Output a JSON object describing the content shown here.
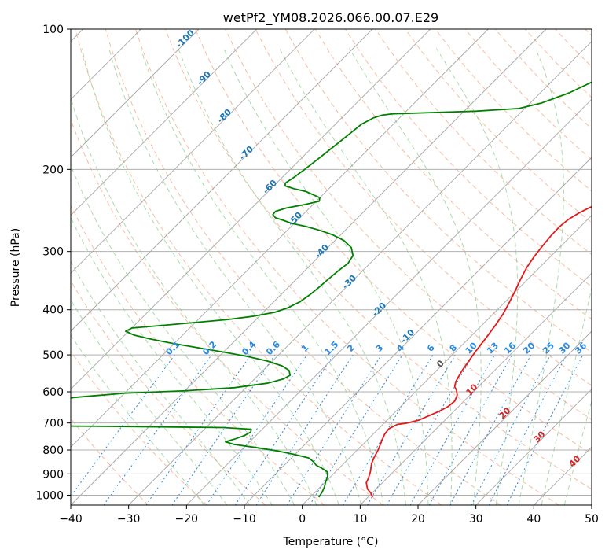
{
  "chart_data": {
    "type": "line",
    "title": "wetPf2_YM08.2026.066.00.07.E29",
    "xlabel": "Temperature (°C)",
    "ylabel": "Pressure (hPa)",
    "xlim": [
      -40,
      50
    ],
    "ylim": [
      1050,
      100
    ],
    "y_scale": "log",
    "grid": true,
    "x_ticks": [
      -40,
      -30,
      -20,
      -10,
      0,
      10,
      20,
      30,
      40,
      50
    ],
    "y_ticks": [
      100,
      200,
      300,
      400,
      500,
      600,
      700,
      800,
      900,
      1000
    ],
    "skew": true,
    "series": [
      {
        "color": "#e41a1c",
        "points": [
          [
            10.8,
            1010
          ],
          [
            9.8,
            990
          ],
          [
            8.5,
            970
          ],
          [
            7.2,
            940
          ],
          [
            6.8,
            920
          ],
          [
            6.0,
            890
          ],
          [
            4.8,
            855
          ],
          [
            4.2,
            830
          ],
          [
            3.6,
            800
          ],
          [
            2.8,
            770
          ],
          [
            2.0,
            740
          ],
          [
            1.8,
            720
          ],
          [
            2.5,
            705
          ],
          [
            4.0,
            700
          ],
          [
            5.5,
            690
          ],
          [
            6.5,
            675
          ],
          [
            7.5,
            660
          ],
          [
            8.2,
            645
          ],
          [
            8.4,
            628
          ],
          [
            7.8,
            610
          ],
          [
            6.8,
            595
          ],
          [
            5.9,
            585
          ],
          [
            5.2,
            570
          ],
          [
            4.8,
            555
          ],
          [
            4.4,
            540
          ],
          [
            3.9,
            515
          ],
          [
            3.4,
            490
          ],
          [
            2.9,
            460
          ],
          [
            2.3,
            430
          ],
          [
            1.7,
            408
          ],
          [
            0.9,
            388
          ],
          [
            -0.1,
            366
          ],
          [
            -1.2,
            345
          ],
          [
            -2.2,
            325
          ],
          [
            -2.8,
            308
          ],
          [
            -3.2,
            292
          ],
          [
            -3.5,
            278
          ],
          [
            -3.6,
            266
          ],
          [
            -3.3,
            256
          ],
          [
            -2.6,
            248
          ],
          [
            -1.6,
            241
          ],
          [
            -0.2,
            234
          ],
          [
            1.2,
            227
          ],
          [
            2.6,
            220
          ],
          [
            4.3,
            213
          ],
          [
            5.9,
            205
          ],
          [
            7.4,
            197
          ],
          [
            9.0,
            189
          ],
          [
            10.6,
            181
          ],
          [
            12.0,
            173
          ],
          [
            13.3,
            165
          ],
          [
            14.5,
            157
          ],
          [
            15.5,
            150
          ],
          [
            16.5,
            143
          ],
          [
            17.4,
            136
          ],
          [
            18.4,
            129
          ],
          [
            19.2,
            122
          ],
          [
            20.1,
            116
          ],
          [
            21.1,
            110
          ],
          [
            22.3,
            104
          ],
          [
            23.3,
            100
          ]
        ]
      },
      {
        "color": "#008000",
        "points": [
          [
            1.5,
            1010
          ],
          [
            1.2,
            985
          ],
          [
            0.7,
            960
          ],
          [
            0.0,
            935
          ],
          [
            -0.6,
            910
          ],
          [
            -1.5,
            890
          ],
          [
            -3.0,
            875
          ],
          [
            -4.5,
            862
          ],
          [
            -5.5,
            848
          ],
          [
            -7.0,
            832
          ],
          [
            -10.0,
            818
          ],
          [
            -13.5,
            804
          ],
          [
            -18.0,
            790
          ],
          [
            -22.3,
            778
          ],
          [
            -24.2,
            768
          ],
          [
            -23.0,
            757
          ],
          [
            -22.0,
            745
          ],
          [
            -21.5,
            732
          ],
          [
            -21.9,
            722
          ],
          [
            -27.0,
            716
          ],
          [
            -45.0,
            712
          ],
          [
            -68.0,
            709
          ],
          [
            -75.0,
            707
          ],
          [
            -76.0,
            690
          ],
          [
            -71.0,
            670
          ],
          [
            -67.0,
            650
          ],
          [
            -63.0,
            632
          ],
          [
            -58.0,
            617
          ],
          [
            -50.0,
            604
          ],
          [
            -40.0,
            597
          ],
          [
            -32.0,
            588
          ],
          [
            -27.0,
            575
          ],
          [
            -25.0,
            563
          ],
          [
            -24.5,
            553
          ],
          [
            -25.5,
            540
          ],
          [
            -27.5,
            528
          ],
          [
            -31.0,
            515
          ],
          [
            -35.5,
            503
          ],
          [
            -40.5,
            492
          ],
          [
            -45.5,
            482
          ],
          [
            -50.5,
            472
          ],
          [
            -55.0,
            462
          ],
          [
            -58.5,
            453
          ],
          [
            -60.5,
            445
          ],
          [
            -60.0,
            438
          ],
          [
            -55.0,
            432
          ],
          [
            -50.0,
            426
          ],
          [
            -45.0,
            420
          ],
          [
            -41.0,
            413
          ],
          [
            -38.0,
            405
          ],
          [
            -36.5,
            396
          ],
          [
            -35.5,
            385
          ],
          [
            -35.0,
            372
          ],
          [
            -34.7,
            358
          ],
          [
            -34.5,
            345
          ],
          [
            -34.2,
            330
          ],
          [
            -33.8,
            318
          ],
          [
            -34.3,
            306
          ],
          [
            -36.0,
            294
          ],
          [
            -38.5,
            284
          ],
          [
            -41.5,
            276
          ],
          [
            -44.5,
            270
          ],
          [
            -47.5,
            265
          ],
          [
            -50.5,
            261
          ],
          [
            -52.5,
            257
          ],
          [
            -54.2,
            254
          ],
          [
            -55.2,
            250
          ],
          [
            -55.3,
            246
          ],
          [
            -54.0,
            242
          ],
          [
            -51.5,
            238
          ],
          [
            -49.5,
            234
          ],
          [
            -50.0,
            230
          ],
          [
            -51.5,
            227
          ],
          [
            -53.5,
            223
          ],
          [
            -56.0,
            220
          ],
          [
            -58.0,
            217
          ],
          [
            -58.5,
            214
          ],
          [
            -58.0,
            208
          ],
          [
            -57.5,
            200
          ],
          [
            -57.0,
            190
          ],
          [
            -56.5,
            180
          ],
          [
            -56.0,
            170
          ],
          [
            -55.5,
            160
          ],
          [
            -54.5,
            155
          ],
          [
            -53.5,
            153
          ],
          [
            -52.0,
            152
          ],
          [
            -45.0,
            151
          ],
          [
            -38.0,
            150
          ],
          [
            -31.0,
            148
          ],
          [
            -28.0,
            144
          ],
          [
            -25.0,
            137
          ],
          [
            -23.0,
            130
          ],
          [
            -21.0,
            123
          ],
          [
            -19.0,
            116
          ],
          [
            -17.5,
            110
          ],
          [
            -16.0,
            104
          ],
          [
            -15.0,
            100
          ]
        ]
      }
    ],
    "dry_adiabat_labels": [
      "-100",
      "-90",
      "-80",
      "-70",
      "-60",
      "-50",
      "-40",
      "-30",
      "-20",
      "-10"
    ],
    "mixing_ratio_labels": [
      "0.1",
      "0.2",
      "0.4",
      "0.6",
      "1",
      "1.5",
      "2",
      "3",
      "4",
      "6",
      "8",
      "10",
      "13",
      "16",
      "20",
      "25",
      "30",
      "36"
    ],
    "moist_adiabat_labels": [
      "0",
      "10",
      "20",
      "30",
      "40"
    ]
  }
}
